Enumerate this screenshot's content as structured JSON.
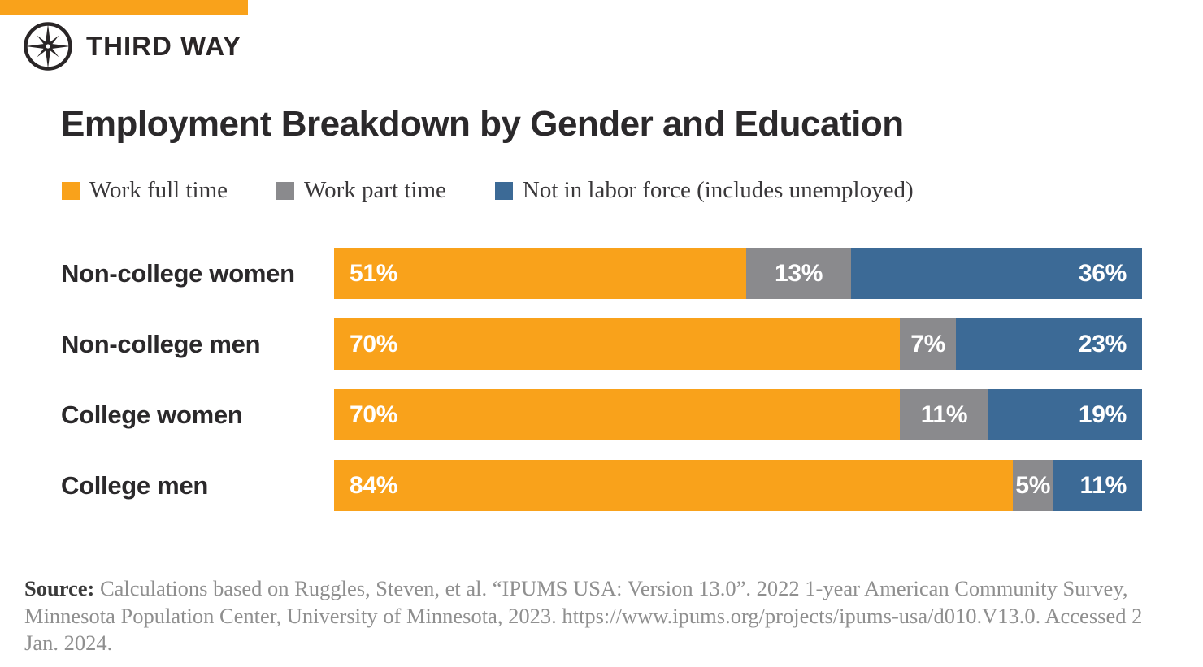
{
  "brand": {
    "name": "THIRD WAY",
    "logo_icon": "compass-icon",
    "accent_color": "#F9A21B"
  },
  "chart_data": {
    "type": "bar",
    "orientation": "horizontal",
    "stacked": true,
    "title": "Employment Breakdown by Gender and Education",
    "categories": [
      "Non-college women",
      "Non-college men",
      "College women",
      "College men"
    ],
    "series": [
      {
        "name": "Work full time",
        "color": "#F9A21B",
        "values": [
          51,
          70,
          70,
          84
        ]
      },
      {
        "name": "Work part time",
        "color": "#8A8A8D",
        "values": [
          13,
          7,
          11,
          5
        ]
      },
      {
        "name": "Not in labor force (includes unemployed)",
        "color": "#3C6A96",
        "values": [
          36,
          23,
          19,
          11
        ]
      }
    ],
    "value_suffix": "%",
    "xlim": [
      0,
      100
    ],
    "legend_position": "top",
    "grid": false,
    "value_label_color": "#FFFFFF"
  },
  "source": {
    "label": "Source:",
    "text": " Calculations based on Ruggles, Steven, et al. “IPUMS USA: Version 13.0”. 2022 1-year American Community Survey, Minnesota Population Center, University of Minnesota, 2023. https://www.ipums.org/projects/ipums-usa/d010.V13.0. Accessed 2 Jan. 2024."
  }
}
